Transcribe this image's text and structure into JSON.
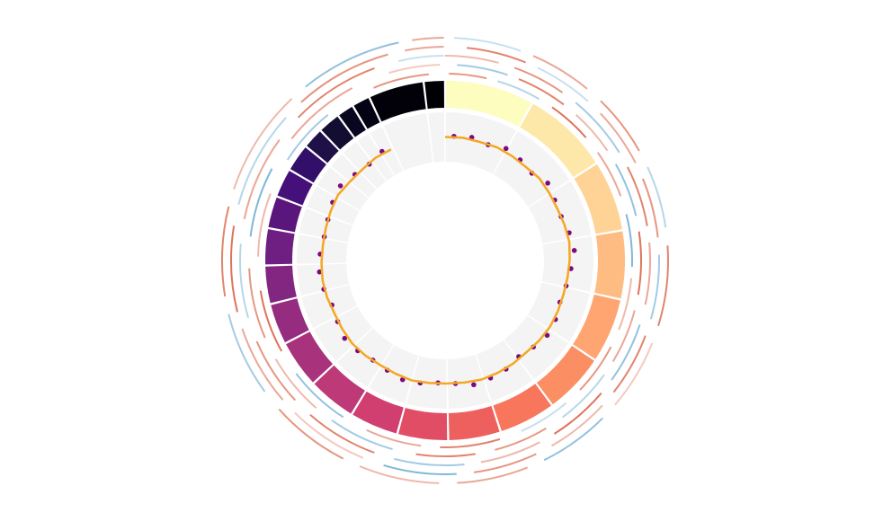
{
  "chart_data": {
    "type": "circos",
    "segments": {
      "lengths": [
        249,
        243,
        198,
        191,
        181,
        171,
        159,
        146,
        141,
        136,
        135,
        134,
        115,
        107,
        103,
        90,
        81,
        78,
        59,
        63,
        48,
        51,
        155,
        59
      ],
      "colors": [
        "#fcfdbf",
        "#fde8a9",
        "#fed395",
        "#febc82",
        "#fea572",
        "#fc8e64",
        "#f7765c",
        "#ee605d",
        "#e24d66",
        "#d03f6f",
        "#bd3977",
        "#a9327d",
        "#952c80",
        "#822681",
        "#6e1f81",
        "#5b167e",
        "#46107a",
        "#32106a",
        "#1f1147",
        "#120d31",
        "#090720",
        "#040313",
        "#020109",
        "#000004"
      ]
    },
    "ylim": [
      0,
      1
    ],
    "series": [
      {
        "kind": "scatter",
        "color": "#7b0a82",
        "x": [
          35,
          105,
          175,
          245,
          315,
          385,
          455,
          525,
          595,
          665,
          735,
          805,
          875,
          945,
          1015,
          1085,
          1155,
          1225,
          1295,
          1365,
          1435,
          1505,
          1575,
          1645,
          1715,
          1785,
          1855,
          1925,
          1995,
          2065,
          2135,
          2205,
          2275,
          2345,
          2415,
          2485,
          2555,
          2625,
          2695,
          2765,
          2835
        ],
        "values": [
          0.52,
          0.55,
          0.5,
          0.58,
          0.54,
          0.49,
          0.6,
          0.53,
          0.51,
          0.57,
          0.62,
          0.55,
          0.5,
          0.47,
          0.53,
          0.56,
          0.5,
          0.45,
          0.52,
          0.55,
          0.58,
          0.5,
          0.48,
          0.53,
          0.56,
          0.51,
          0.49,
          0.54,
          0.57,
          0.5,
          0.46,
          0.52,
          0.55,
          0.53,
          0.49,
          0.51,
          0.56,
          0.6,
          0.52,
          0.48,
          0.55
        ]
      },
      {
        "kind": "line",
        "color": "#f5a623",
        "x": [
          0,
          70,
          140,
          210,
          280,
          350,
          420,
          490,
          560,
          630,
          700,
          770,
          840,
          910,
          980,
          1050,
          1120,
          1190,
          1260,
          1330,
          1400,
          1470,
          1540,
          1610,
          1680,
          1750,
          1820,
          1890,
          1960,
          2030,
          2100,
          2170,
          2240,
          2310,
          2380,
          2450,
          2520,
          2590,
          2660,
          2730,
          2800,
          2870
        ],
        "values": [
          0.5,
          0.51,
          0.5,
          0.52,
          0.51,
          0.5,
          0.53,
          0.51,
          0.5,
          0.52,
          0.54,
          0.52,
          0.5,
          0.49,
          0.5,
          0.51,
          0.5,
          0.48,
          0.5,
          0.51,
          0.52,
          0.5,
          0.49,
          0.5,
          0.52,
          0.5,
          0.49,
          0.51,
          0.52,
          0.5,
          0.48,
          0.5,
          0.51,
          0.5,
          0.49,
          0.5,
          0.52,
          0.54,
          0.5,
          0.49,
          0.51,
          0.5
        ]
      }
    ],
    "heat_colors": {
      "negative": "#4a98c9",
      "positive": "#d6502f"
    },
    "tracks": [
      {
        "start": [
          10,
          140,
          300,
          470,
          650,
          820,
          1010,
          1200,
          1400,
          1610,
          1830,
          2070,
          2330,
          2600,
          2900
        ],
        "end": [
          110,
          260,
          420,
          600,
          790,
          960,
          1150,
          1340,
          1560,
          1760,
          2000,
          2240,
          2500,
          2760,
          3050
        ],
        "values": [
          0.6,
          -0.4,
          0.8,
          0.5,
          -0.7,
          0.4,
          0.6,
          -0.3,
          0.7,
          0.5,
          -0.6,
          0.8,
          0.4,
          -0.5,
          0.6
        ]
      },
      {
        "start": [
          30,
          190,
          360,
          520,
          700,
          900,
          1080,
          1280,
          1470,
          1680,
          1900,
          2120,
          2380,
          2650,
          2950
        ],
        "end": [
          160,
          320,
          480,
          660,
          860,
          1040,
          1230,
          1420,
          1620,
          1850,
          2060,
          2300,
          2560,
          2850,
          3080
        ],
        "values": [
          -0.5,
          0.7,
          0.4,
          -0.6,
          0.8,
          0.5,
          -0.4,
          0.6,
          0.7,
          -0.5,
          0.4,
          0.6,
          -0.7,
          0.5,
          0.3
        ]
      },
      {
        "start": [
          0,
          170,
          340,
          540,
          730,
          930,
          1120,
          1310,
          1500,
          1720,
          1950,
          2180,
          2420,
          2700,
          2980
        ],
        "end": [
          130,
          300,
          500,
          690,
          880,
          1080,
          1270,
          1460,
          1670,
          1900,
          2120,
          2360,
          2630,
          2920,
          3090
        ],
        "values": [
          0.4,
          0.6,
          -0.5,
          0.7,
          0.5,
          -0.6,
          0.8,
          0.4,
          -0.5,
          0.7,
          0.6,
          -0.4,
          0.5,
          0.7,
          -0.3
        ]
      },
      {
        "start": [
          50,
          220,
          400,
          580,
          760,
          950,
          1140,
          1330,
          1520,
          1740,
          1970,
          2200,
          2450,
          2730,
          3000
        ],
        "end": [
          190,
          360,
          540,
          720,
          910,
          1100,
          1290,
          1480,
          1690,
          1930,
          2160,
          2400,
          2680,
          2960,
          3090
        ],
        "values": [
          0.7,
          -0.3,
          0.5,
          0.6,
          -0.5,
          0.7,
          0.4,
          0.6,
          -0.7,
          0.3,
          0.5,
          0.8,
          -0.4,
          0.6,
          0.5
        ]
      },
      {
        "start": [
          20,
          200,
          380,
          560,
          740,
          960,
          1160,
          1360,
          1560,
          1780,
          2010,
          2240,
          2480,
          2760,
          3020
        ],
        "end": [
          170,
          340,
          520,
          700,
          920,
          1120,
          1320,
          1520,
          1740,
          1960,
          2200,
          2440,
          2720,
          2990,
          3090
        ],
        "values": [
          -0.3,
          0.5,
          0.6,
          -0.4,
          0.7,
          0.3,
          -0.6,
          0.5,
          0.4,
          0.6,
          -0.5,
          0.7,
          0.4,
          -0.6,
          0.5
        ]
      }
    ]
  }
}
